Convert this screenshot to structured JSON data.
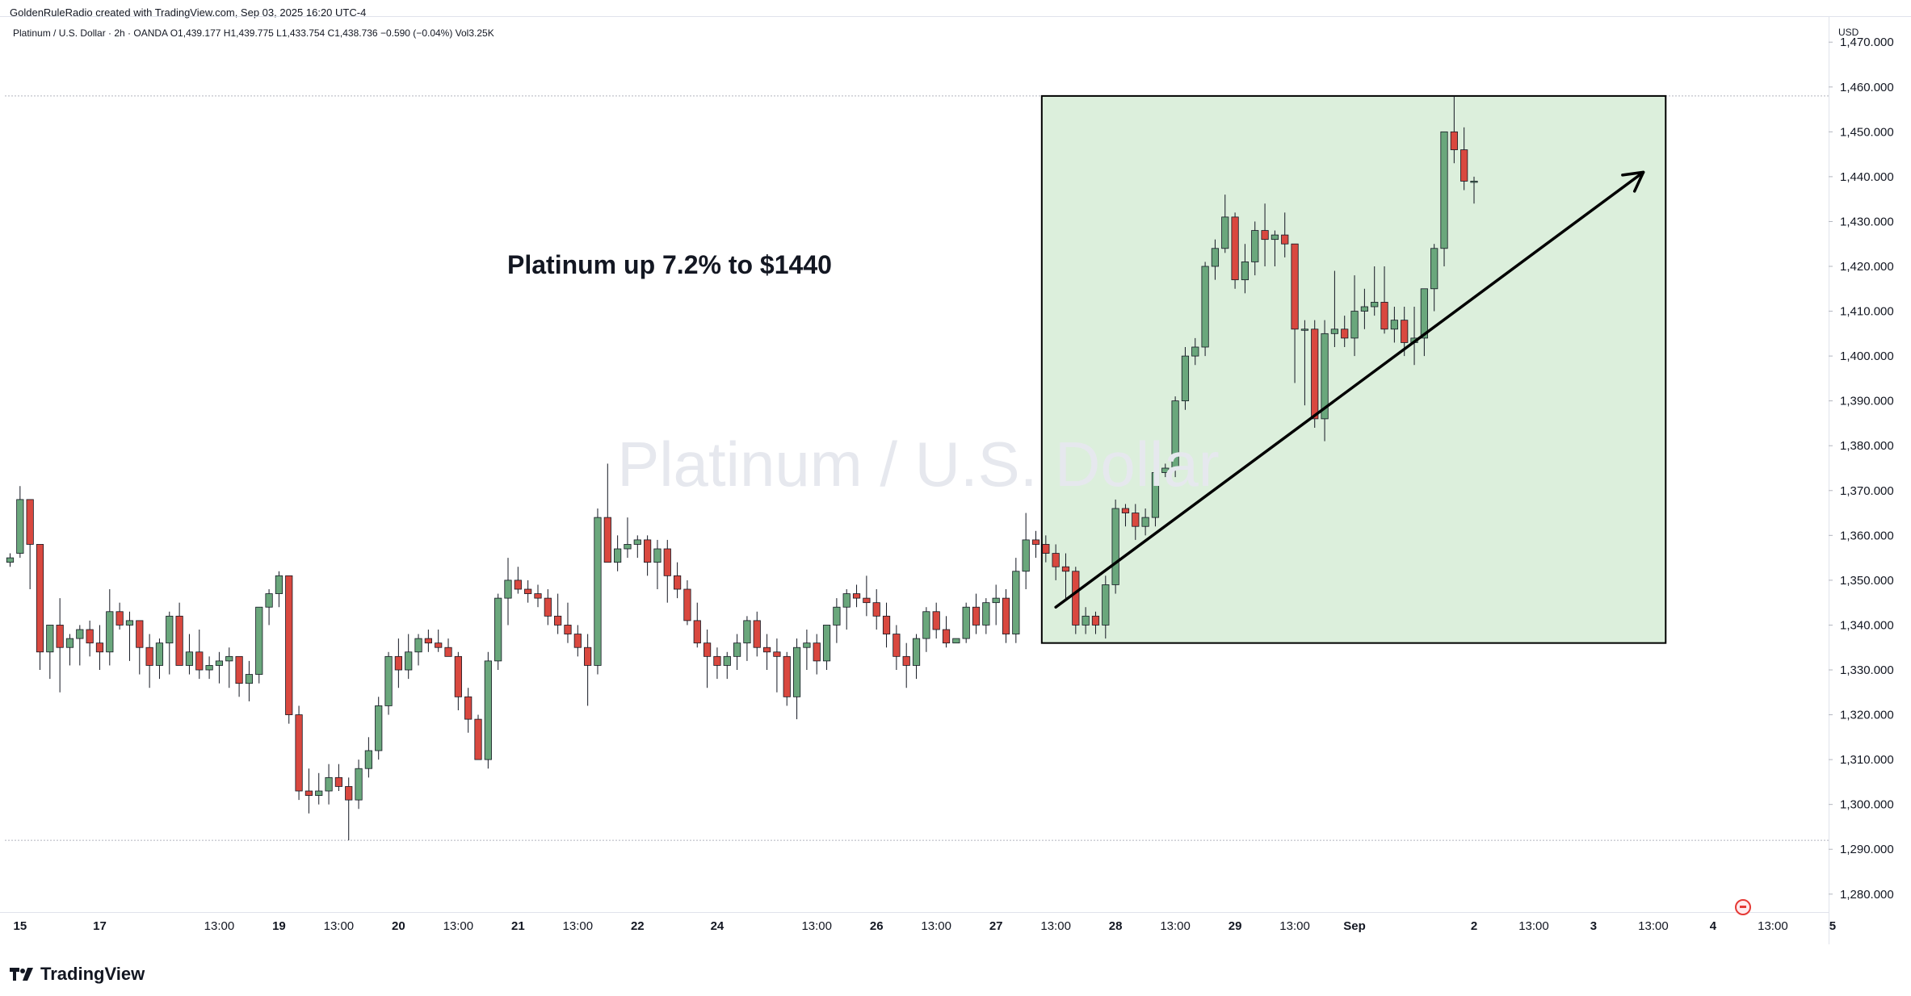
{
  "header": {
    "credit": "GoldenRuleRadio created with TradingView.com, Sep 03, 2025 16:20 UTC-4",
    "symbol_info": "Platinum / U.S. Dollar · 2h · OANDA  O1,439.177  H1,439.775  L1,433.754  C1,438.736  −0.590 (−0.04%)  Vol3.25K"
  },
  "watermark": "Platinum / U.S. Dollar",
  "annotation": "Platinum up 7.2% to $1440",
  "footer": {
    "brand": "TradingView"
  },
  "colors": {
    "up": "#6aa77c",
    "down": "#d9483f",
    "highlight_fill": "#dcefdc",
    "arrow": "#000000"
  },
  "chart_data": {
    "type": "candlestick",
    "currency_label": "USD",
    "y_ticks": [
      1280,
      1290,
      1300,
      1310,
      1320,
      1330,
      1340,
      1350,
      1360,
      1370,
      1380,
      1390,
      1400,
      1410,
      1420,
      1430,
      1440,
      1450,
      1460,
      1470
    ],
    "y_tick_labels": [
      "1,280.000",
      "1,290.000",
      "1,300.000",
      "1,310.000",
      "1,320.000",
      "1,330.000",
      "1,340.000",
      "1,350.000",
      "1,360.000",
      "1,370.000",
      "1,380.000",
      "1,390.000",
      "1,400.000",
      "1,410.000",
      "1,420.000",
      "1,430.000",
      "1,440.000",
      "1,450.000",
      "1,460.000",
      "1,470.000"
    ],
    "ylim": [
      1276,
      1474
    ],
    "x_labels": [
      {
        "i": 1,
        "label": "15"
      },
      {
        "i": 9,
        "label": "17"
      },
      {
        "i": 21,
        "label": "13:00"
      },
      {
        "i": 27,
        "label": "19"
      },
      {
        "i": 33,
        "label": "13:00"
      },
      {
        "i": 39,
        "label": "20"
      },
      {
        "i": 45,
        "label": "13:00"
      },
      {
        "i": 51,
        "label": "21"
      },
      {
        "i": 57,
        "label": "13:00"
      },
      {
        "i": 63,
        "label": "22"
      },
      {
        "i": 71,
        "label": "24"
      },
      {
        "i": 81,
        "label": "13:00"
      },
      {
        "i": 87,
        "label": "26"
      },
      {
        "i": 93,
        "label": "13:00"
      },
      {
        "i": 99,
        "label": "27"
      },
      {
        "i": 105,
        "label": "13:00"
      },
      {
        "i": 111,
        "label": "28"
      },
      {
        "i": 117,
        "label": "13:00"
      },
      {
        "i": 123,
        "label": "29"
      },
      {
        "i": 129,
        "label": "13:00"
      },
      {
        "i": 135,
        "label": "Sep"
      },
      {
        "i": 147,
        "label": "2"
      },
      {
        "i": 153,
        "label": "13:00"
      },
      {
        "i": 159,
        "label": "3"
      },
      {
        "i": 165,
        "label": "13:00"
      },
      {
        "i": 171,
        "label": "4"
      },
      {
        "i": 177,
        "label": "13:00"
      },
      {
        "i": 183,
        "label": "5"
      }
    ],
    "horizontal_levels": [
      1458,
      1292
    ],
    "highlight_box": {
      "i_start": 104,
      "i_end": 166,
      "top": 1458,
      "bottom": 1336
    },
    "trend_arrow": {
      "from": {
        "i": 105,
        "price": 1344
      },
      "to": {
        "i": 164,
        "price": 1441
      }
    },
    "candles": [
      [
        1354,
        1356,
        1353,
        1355
      ],
      [
        1356,
        1371,
        1355,
        1368
      ],
      [
        1368,
        1368,
        1348,
        1358
      ],
      [
        1358,
        1358,
        1330,
        1334
      ],
      [
        1334,
        1340,
        1328,
        1340
      ],
      [
        1340,
        1346,
        1325,
        1335
      ],
      [
        1335,
        1338,
        1331,
        1337
      ],
      [
        1337,
        1340,
        1331,
        1339
      ],
      [
        1339,
        1341,
        1333,
        1336
      ],
      [
        1336,
        1340,
        1330,
        1334
      ],
      [
        1334,
        1348,
        1331,
        1343
      ],
      [
        1343,
        1345,
        1339,
        1340
      ],
      [
        1340,
        1343,
        1332,
        1341
      ],
      [
        1341,
        1341,
        1329,
        1335
      ],
      [
        1335,
        1338,
        1326,
        1331
      ],
      [
        1331,
        1337,
        1328,
        1336
      ],
      [
        1336,
        1343,
        1329,
        1342
      ],
      [
        1342,
        1345,
        1332,
        1331
      ],
      [
        1331,
        1338,
        1329,
        1334
      ],
      [
        1334,
        1339,
        1328,
        1330
      ],
      [
        1330,
        1333,
        1328,
        1331
      ],
      [
        1331,
        1334,
        1327,
        1332
      ],
      [
        1332,
        1335,
        1326,
        1333
      ],
      [
        1333,
        1333,
        1324,
        1327
      ],
      [
        1327,
        1332,
        1323,
        1329
      ],
      [
        1329,
        1344,
        1327,
        1344
      ],
      [
        1344,
        1348,
        1340,
        1347
      ],
      [
        1347,
        1352,
        1344,
        1351
      ],
      [
        1351,
        1351,
        1318,
        1320
      ],
      [
        1320,
        1322,
        1301,
        1303
      ],
      [
        1303,
        1308,
        1298,
        1302
      ],
      [
        1302,
        1307,
        1300,
        1303
      ],
      [
        1303,
        1309,
        1300,
        1306
      ],
      [
        1306,
        1309,
        1303,
        1304
      ],
      [
        1304,
        1306,
        1292,
        1301
      ],
      [
        1301,
        1310,
        1299,
        1308
      ],
      [
        1308,
        1315,
        1306,
        1312
      ],
      [
        1312,
        1324,
        1310,
        1322
      ],
      [
        1322,
        1334,
        1320,
        1333
      ],
      [
        1333,
        1337,
        1326,
        1330
      ],
      [
        1330,
        1338,
        1328,
        1334
      ],
      [
        1334,
        1338,
        1331,
        1337
      ],
      [
        1337,
        1339,
        1334,
        1336
      ],
      [
        1336,
        1339,
        1334,
        1335
      ],
      [
        1335,
        1337,
        1333,
        1333
      ],
      [
        1333,
        1334,
        1321,
        1324
      ],
      [
        1324,
        1326,
        1316,
        1319
      ],
      [
        1319,
        1320,
        1310,
        1310
      ],
      [
        1310,
        1334,
        1308,
        1332
      ],
      [
        1332,
        1347,
        1330,
        1346
      ],
      [
        1346,
        1355,
        1340,
        1350
      ],
      [
        1350,
        1353,
        1347,
        1348
      ],
      [
        1348,
        1350,
        1345,
        1347
      ],
      [
        1347,
        1349,
        1344,
        1346
      ],
      [
        1346,
        1348,
        1340,
        1342
      ],
      [
        1342,
        1347,
        1338,
        1340
      ],
      [
        1340,
        1345,
        1336,
        1338
      ],
      [
        1338,
        1340,
        1333,
        1335
      ],
      [
        1335,
        1338,
        1322,
        1331
      ],
      [
        1331,
        1366,
        1329,
        1364
      ],
      [
        1364,
        1376,
        1354,
        1354
      ],
      [
        1354,
        1360,
        1352,
        1357
      ],
      [
        1357,
        1364,
        1355,
        1358
      ],
      [
        1358,
        1360,
        1355,
        1359
      ],
      [
        1359,
        1360,
        1351,
        1354
      ],
      [
        1354,
        1359,
        1348,
        1357
      ],
      [
        1357,
        1359,
        1345,
        1351
      ],
      [
        1351,
        1354,
        1346,
        1348
      ],
      [
        1348,
        1350,
        1340,
        1341
      ],
      [
        1341,
        1345,
        1335,
        1336
      ],
      [
        1336,
        1339,
        1326,
        1333
      ],
      [
        1333,
        1335,
        1328,
        1331
      ],
      [
        1331,
        1334,
        1328,
        1333
      ],
      [
        1333,
        1338,
        1330,
        1336
      ],
      [
        1336,
        1342,
        1332,
        1341
      ],
      [
        1341,
        1343,
        1333,
        1335
      ],
      [
        1335,
        1338,
        1330,
        1334
      ],
      [
        1334,
        1337,
        1325,
        1333
      ],
      [
        1333,
        1334,
        1322,
        1324
      ],
      [
        1324,
        1337,
        1319,
        1335
      ],
      [
        1335,
        1339,
        1330,
        1336
      ],
      [
        1336,
        1338,
        1329,
        1332
      ],
      [
        1332,
        1340,
        1330,
        1340
      ],
      [
        1340,
        1346,
        1336,
        1344
      ],
      [
        1344,
        1348,
        1339,
        1347
      ],
      [
        1347,
        1349,
        1344,
        1346
      ],
      [
        1346,
        1351,
        1342,
        1345
      ],
      [
        1345,
        1348,
        1339,
        1342
      ],
      [
        1342,
        1345,
        1335,
        1338
      ],
      [
        1338,
        1340,
        1330,
        1333
      ],
      [
        1333,
        1336,
        1326,
        1331
      ],
      [
        1331,
        1338,
        1328,
        1337
      ],
      [
        1337,
        1344,
        1334,
        1343
      ],
      [
        1343,
        1345,
        1337,
        1339
      ],
      [
        1339,
        1342,
        1335,
        1336
      ],
      [
        1336,
        1337,
        1336,
        1337
      ],
      [
        1337,
        1345,
        1336,
        1344
      ],
      [
        1344,
        1347,
        1338,
        1340
      ],
      [
        1340,
        1346,
        1338,
        1345
      ],
      [
        1345,
        1349,
        1340,
        1346
      ],
      [
        1346,
        1348,
        1336,
        1338
      ],
      [
        1338,
        1355,
        1336,
        1352
      ],
      [
        1352,
        1365,
        1348,
        1359
      ],
      [
        1359,
        1361,
        1355,
        1358
      ],
      [
        1358,
        1360,
        1354,
        1356
      ],
      [
        1356,
        1358,
        1350,
        1353
      ],
      [
        1353,
        1356,
        1346,
        1352
      ],
      [
        1352,
        1353,
        1338,
        1340
      ],
      [
        1340,
        1344,
        1338,
        1342
      ],
      [
        1342,
        1343,
        1338,
        1340
      ],
      [
        1340,
        1351,
        1337,
        1349
      ],
      [
        1349,
        1368,
        1347,
        1366
      ],
      [
        1366,
        1367,
        1362,
        1365
      ],
      [
        1365,
        1367,
        1359,
        1362
      ],
      [
        1362,
        1366,
        1360,
        1364
      ],
      [
        1364,
        1376,
        1362,
        1374
      ],
      [
        1374,
        1376,
        1373,
        1375
      ],
      [
        1375,
        1391,
        1373,
        1390
      ],
      [
        1390,
        1402,
        1388,
        1400
      ],
      [
        1400,
        1404,
        1398,
        1402
      ],
      [
        1402,
        1421,
        1400,
        1420
      ],
      [
        1420,
        1426,
        1417,
        1424
      ],
      [
        1424,
        1436,
        1423,
        1431
      ],
      [
        1431,
        1432,
        1415,
        1417
      ],
      [
        1417,
        1425,
        1414,
        1421
      ],
      [
        1421,
        1430,
        1418,
        1428
      ],
      [
        1428,
        1434,
        1420,
        1426
      ],
      [
        1426,
        1428,
        1420,
        1427
      ],
      [
        1427,
        1432,
        1422,
        1425
      ],
      [
        1425,
        1425,
        1394,
        1406
      ],
      [
        1406,
        1408,
        1389,
        1406
      ],
      [
        1406,
        1408,
        1384,
        1386
      ],
      [
        1386,
        1408,
        1381,
        1405
      ],
      [
        1405,
        1419,
        1402,
        1406
      ],
      [
        1406,
        1409,
        1402,
        1404
      ],
      [
        1404,
        1418,
        1400,
        1410
      ],
      [
        1410,
        1415,
        1406,
        1411
      ],
      [
        1411,
        1420,
        1409,
        1412
      ],
      [
        1412,
        1420,
        1405,
        1406
      ],
      [
        1406,
        1411,
        1403,
        1408
      ],
      [
        1408,
        1411,
        1400,
        1403
      ],
      [
        1403,
        1411,
        1398,
        1404
      ],
      [
        1404,
        1415,
        1400,
        1415
      ],
      [
        1415,
        1425,
        1410,
        1424
      ],
      [
        1424,
        1450,
        1420,
        1450
      ],
      [
        1450,
        1458,
        1443,
        1446
      ],
      [
        1446,
        1451,
        1437,
        1439
      ],
      [
        1439,
        1440,
        1434,
        1439
      ]
    ]
  }
}
